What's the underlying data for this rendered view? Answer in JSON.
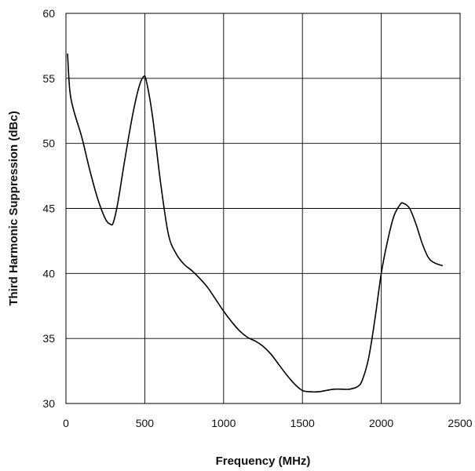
{
  "chart_data": {
    "type": "line",
    "title": "",
    "xlabel": "Frequency (MHz)",
    "ylabel": "Third Harmonic Suppression (dBc)",
    "xlim": [
      0,
      2500
    ],
    "ylim": [
      30,
      60
    ],
    "x_ticks": [
      "0",
      "500",
      "1000",
      "1500",
      "2000",
      "2500"
    ],
    "y_ticks": [
      "30",
      "35",
      "40",
      "45",
      "50",
      "55",
      "60"
    ],
    "x_tick_values": [
      0,
      500,
      1000,
      1500,
      2000,
      2500
    ],
    "y_tick_values": [
      30,
      35,
      40,
      45,
      50,
      55,
      60
    ],
    "grid": true,
    "legend": "none",
    "series": [
      {
        "color": "#000000",
        "x": [
          10,
          25,
          50,
          100,
          150,
          200,
          250,
          280,
          300,
          330,
          370,
          420,
          460,
          490,
          510,
          550,
          600,
          650,
          700,
          750,
          800,
          850,
          900,
          950,
          1000,
          1050,
          1100,
          1150,
          1200,
          1250,
          1300,
          1350,
          1400,
          1450,
          1500,
          1550,
          1600,
          1650,
          1700,
          1750,
          1800,
          1850,
          1880,
          1920,
          1960,
          2000,
          2040,
          2080,
          2120,
          2140,
          2180,
          2220,
          2260,
          2300,
          2340,
          2390
        ],
        "y": [
          56.9,
          54.0,
          52.5,
          50.5,
          48.0,
          45.8,
          44.2,
          43.8,
          43.9,
          45.5,
          48.5,
          52.0,
          54.2,
          55.1,
          54.8,
          52.0,
          47.0,
          43.0,
          41.5,
          40.7,
          40.2,
          39.6,
          38.9,
          38.0,
          37.1,
          36.3,
          35.6,
          35.1,
          34.8,
          34.4,
          33.8,
          33.0,
          32.2,
          31.5,
          31.0,
          30.9,
          30.9,
          31.0,
          31.1,
          31.1,
          31.1,
          31.3,
          31.8,
          33.5,
          36.5,
          40.0,
          42.5,
          44.4,
          45.3,
          45.4,
          45.0,
          43.8,
          42.3,
          41.2,
          40.8,
          40.6
        ]
      }
    ]
  }
}
